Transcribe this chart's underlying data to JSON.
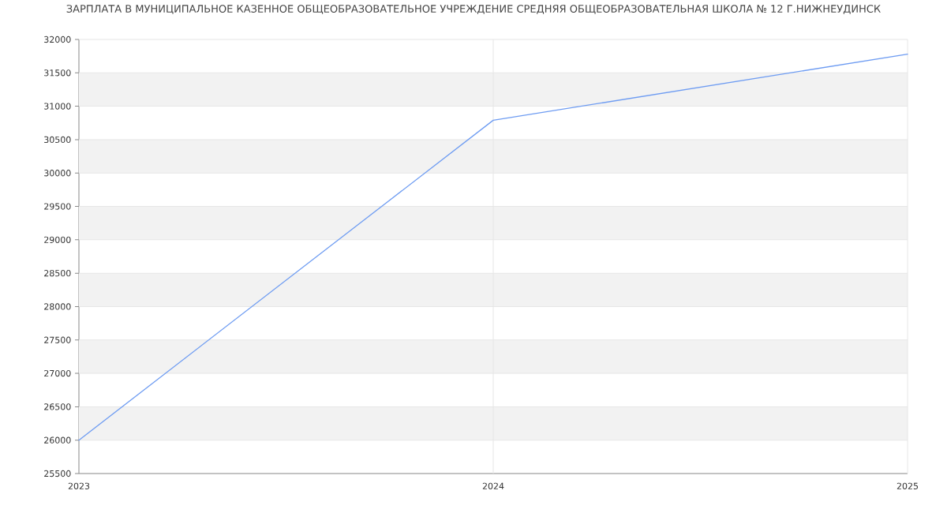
{
  "chart_data": {
    "type": "line",
    "title": "ЗАРПЛАТА В МУНИЦИПАЛЬНОЕ КАЗЕННОЕ ОБЩЕОБРАЗОВАТЕЛЬНОЕ УЧРЕЖДЕНИЕ СРЕДНЯЯ ОБЩЕОБРАЗОВАТЕЛЬНАЯ ШКОЛА № 12 Г.НИЖНЕУДИНСК",
    "x": [
      "2023",
      "2024",
      "2025"
    ],
    "values": [
      26000,
      30790,
      31780
    ],
    "color": "#6e9cf2",
    "line_style": "solid",
    "xlim": [
      "2023",
      "2025"
    ],
    "xticks": [
      "2023",
      "2024",
      "2025"
    ],
    "ylim": [
      25500,
      32000
    ],
    "yticks": [
      25500,
      26000,
      26500,
      27000,
      27500,
      28000,
      28500,
      29000,
      29500,
      30000,
      30500,
      31000,
      31500,
      32000
    ],
    "grid": true
  }
}
